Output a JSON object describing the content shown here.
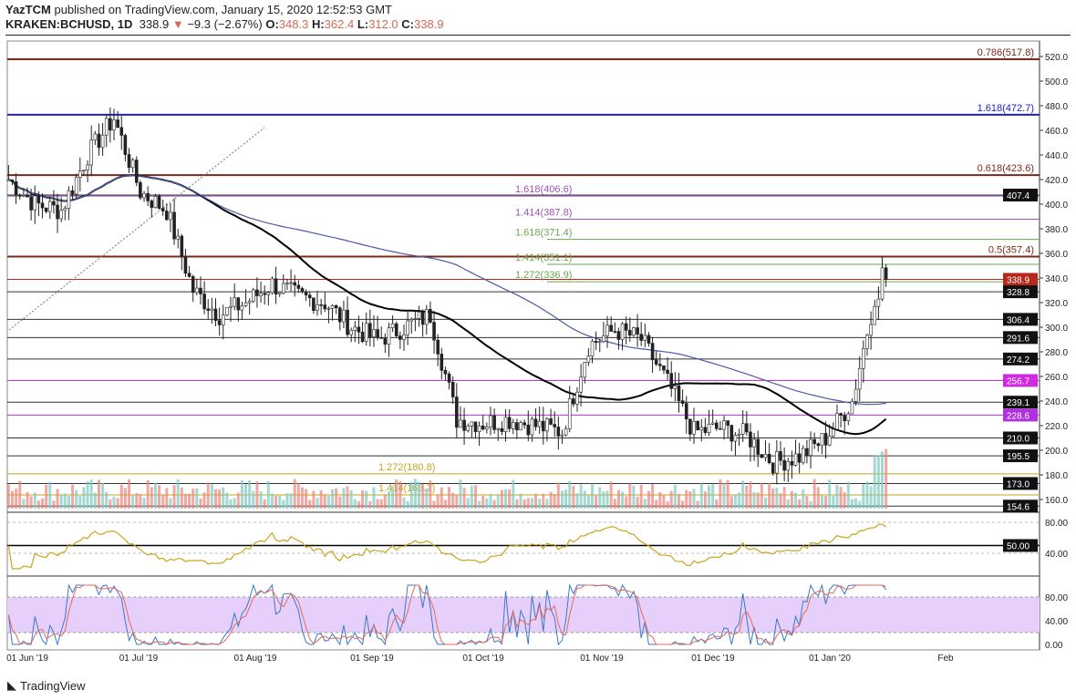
{
  "header": {
    "author": "YazTCM",
    "published": "published on TradingView.com, January 15, 2020 12:52:53 GMT",
    "symbol": "KRAKEN:BCHUSD, 1D",
    "last": "338.9",
    "change": "−9.3 (−2.67%)",
    "o_label": "O:",
    "o": "348.3",
    "h_label": "H:",
    "h": "362.4",
    "l_label": "L:",
    "l": "312.0",
    "c_label": "C:",
    "c": "338.9"
  },
  "logo": "TradingView",
  "colors": {
    "up": "#7dc8c0",
    "down": "#e8857a",
    "candle": "#222222",
    "ma_black": "#000000",
    "ma_blue": "#4a5ba8",
    "rsi": "#c9a51a",
    "stoch_k": "#3b78c9",
    "stoch_d": "#e36a5a",
    "stoch_band": "#e6d0fb"
  },
  "chart_data": {
    "type": "candlestick",
    "price_axis": {
      "ticks": [
        520,
        500,
        480,
        460,
        440,
        420,
        400,
        380,
        360,
        340,
        320,
        300,
        280,
        260,
        240,
        220,
        200,
        180,
        160
      ],
      "ylim": [
        150,
        530
      ]
    },
    "x_ticks": [
      "01 Jun '19",
      "01 Jul '19",
      "01 Aug '19",
      "01 Sep '19",
      "01 Oct '19",
      "01 Nov '19",
      "01 Dec '19",
      "01 Jan '20",
      "Feb"
    ],
    "weekly_closes": [
      {
        "week": "2019-05-27",
        "c": 420
      },
      {
        "week": "2019-06-03",
        "c": 400
      },
      {
        "week": "2019-06-10",
        "c": 395
      },
      {
        "week": "2019-06-17",
        "c": 440
      },
      {
        "week": "2019-06-24",
        "c": 470
      },
      {
        "week": "2019-07-01",
        "c": 410
      },
      {
        "week": "2019-07-08",
        "c": 395
      },
      {
        "week": "2019-07-15",
        "c": 330
      },
      {
        "week": "2019-07-22",
        "c": 310
      },
      {
        "week": "2019-07-29",
        "c": 320
      },
      {
        "week": "2019-08-05",
        "c": 335
      },
      {
        "week": "2019-08-12",
        "c": 325
      },
      {
        "week": "2019-08-19",
        "c": 320
      },
      {
        "week": "2019-08-26",
        "c": 300
      },
      {
        "week": "2019-09-02",
        "c": 290
      },
      {
        "week": "2019-09-09",
        "c": 300
      },
      {
        "week": "2019-09-16",
        "c": 310
      },
      {
        "week": "2019-09-23",
        "c": 225
      },
      {
        "week": "2019-09-30",
        "c": 222
      },
      {
        "week": "2019-10-07",
        "c": 225
      },
      {
        "week": "2019-10-14",
        "c": 220
      },
      {
        "week": "2019-10-21",
        "c": 215
      },
      {
        "week": "2019-10-28",
        "c": 285
      },
      {
        "week": "2019-11-04",
        "c": 298
      },
      {
        "week": "2019-11-11",
        "c": 290
      },
      {
        "week": "2019-11-18",
        "c": 255
      },
      {
        "week": "2019-11-25",
        "c": 215
      },
      {
        "week": "2019-12-02",
        "c": 218
      },
      {
        "week": "2019-12-09",
        "c": 212
      },
      {
        "week": "2019-12-16",
        "c": 190
      },
      {
        "week": "2019-12-23",
        "c": 195
      },
      {
        "week": "2019-12-30",
        "c": 210
      },
      {
        "week": "2020-01-06",
        "c": 240
      },
      {
        "week": "2020-01-13",
        "c": 338.9
      }
    ],
    "levels": [
      {
        "price": 517.8,
        "label": "0.786(517.8)",
        "color": "#7b2a1a"
      },
      {
        "price": 472.7,
        "label": "1.618(472.7)",
        "color": "#2020c0"
      },
      {
        "price": 423.6,
        "label": "0.618(423.6)",
        "color": "#7b2a1a"
      },
      {
        "price": 406.6,
        "label": "1.618(406.6)",
        "color": "#a050c0"
      },
      {
        "price": 387.8,
        "label": "1.414(387.8)",
        "color": "#a050c0"
      },
      {
        "price": 371.4,
        "label": "1.618(371.4)",
        "color": "#6aa84f"
      },
      {
        "price": 357.4,
        "label": "0.5(357.4)",
        "color": "#7b2a1a"
      },
      {
        "price": 351.1,
        "label": "1.414(351.1)",
        "color": "#6aa84f"
      },
      {
        "price": 336.9,
        "label": "1.272(336.9)",
        "color": "#6aa84f"
      },
      {
        "price": 180.8,
        "label": "1.272(180.8)",
        "color": "#c9a51a"
      },
      {
        "price": 163.7,
        "label": "1.414(163.7)",
        "color": "#c9a51a"
      }
    ],
    "price_badges": [
      {
        "value": "407.4",
        "bg": "#111111"
      },
      {
        "value": "338.9",
        "bg": "#b5281c"
      },
      {
        "value": "328.8",
        "bg": "#111111"
      },
      {
        "value": "306.4",
        "bg": "#111111"
      },
      {
        "value": "291.6",
        "bg": "#111111"
      },
      {
        "value": "274.2",
        "bg": "#111111"
      },
      {
        "value": "256.7",
        "bg": "#d02ae0"
      },
      {
        "value": "239.1",
        "bg": "#111111"
      },
      {
        "value": "228.6",
        "bg": "#b030e0"
      },
      {
        "value": "210.0",
        "bg": "#111111"
      },
      {
        "value": "195.5",
        "bg": "#111111"
      },
      {
        "value": "173.0",
        "bg": "#111111"
      },
      {
        "value": "154.6",
        "bg": "#111111"
      }
    ],
    "rsi": {
      "ticks": [
        "80.00",
        "40.00"
      ],
      "badge": "50.00"
    },
    "stoch": {
      "ticks": [
        "80.00",
        "40.00",
        "0.00"
      ]
    }
  }
}
